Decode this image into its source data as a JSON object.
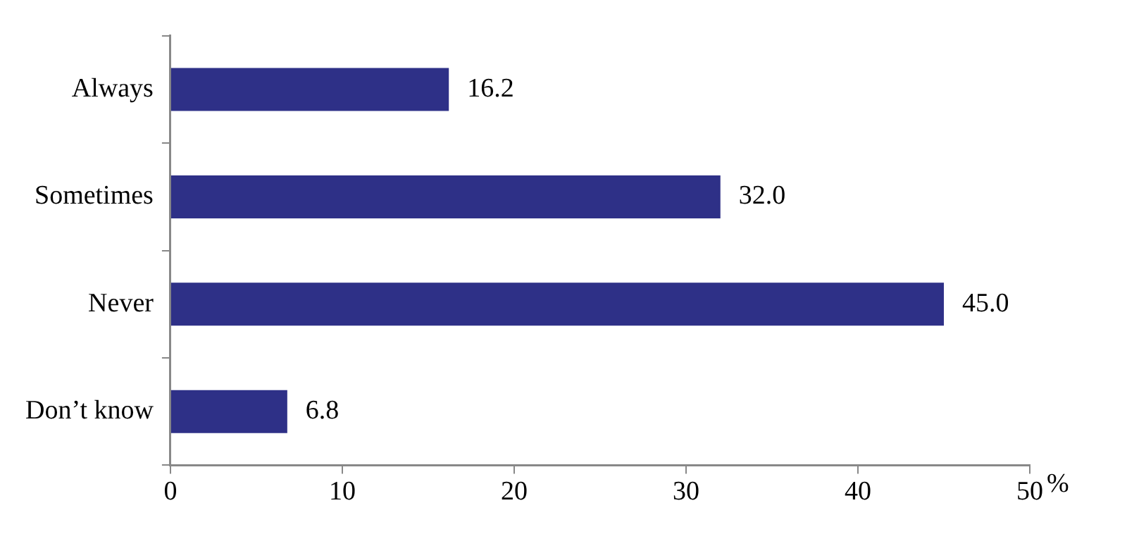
{
  "chart_data": {
    "type": "bar",
    "orientation": "horizontal",
    "categories": [
      "Always",
      "Sometimes",
      "Never",
      "Don’t know"
    ],
    "values": [
      16.2,
      32.0,
      45.0,
      6.8
    ],
    "color": "#2e3087",
    "value_labels": [
      "16.2",
      "32.0",
      "45.0",
      "6.8"
    ],
    "xlabel": "%",
    "xlim": [
      0,
      50
    ],
    "xticks": [
      0,
      10,
      20,
      30,
      40,
      50
    ],
    "grid": false,
    "legend": false
  }
}
